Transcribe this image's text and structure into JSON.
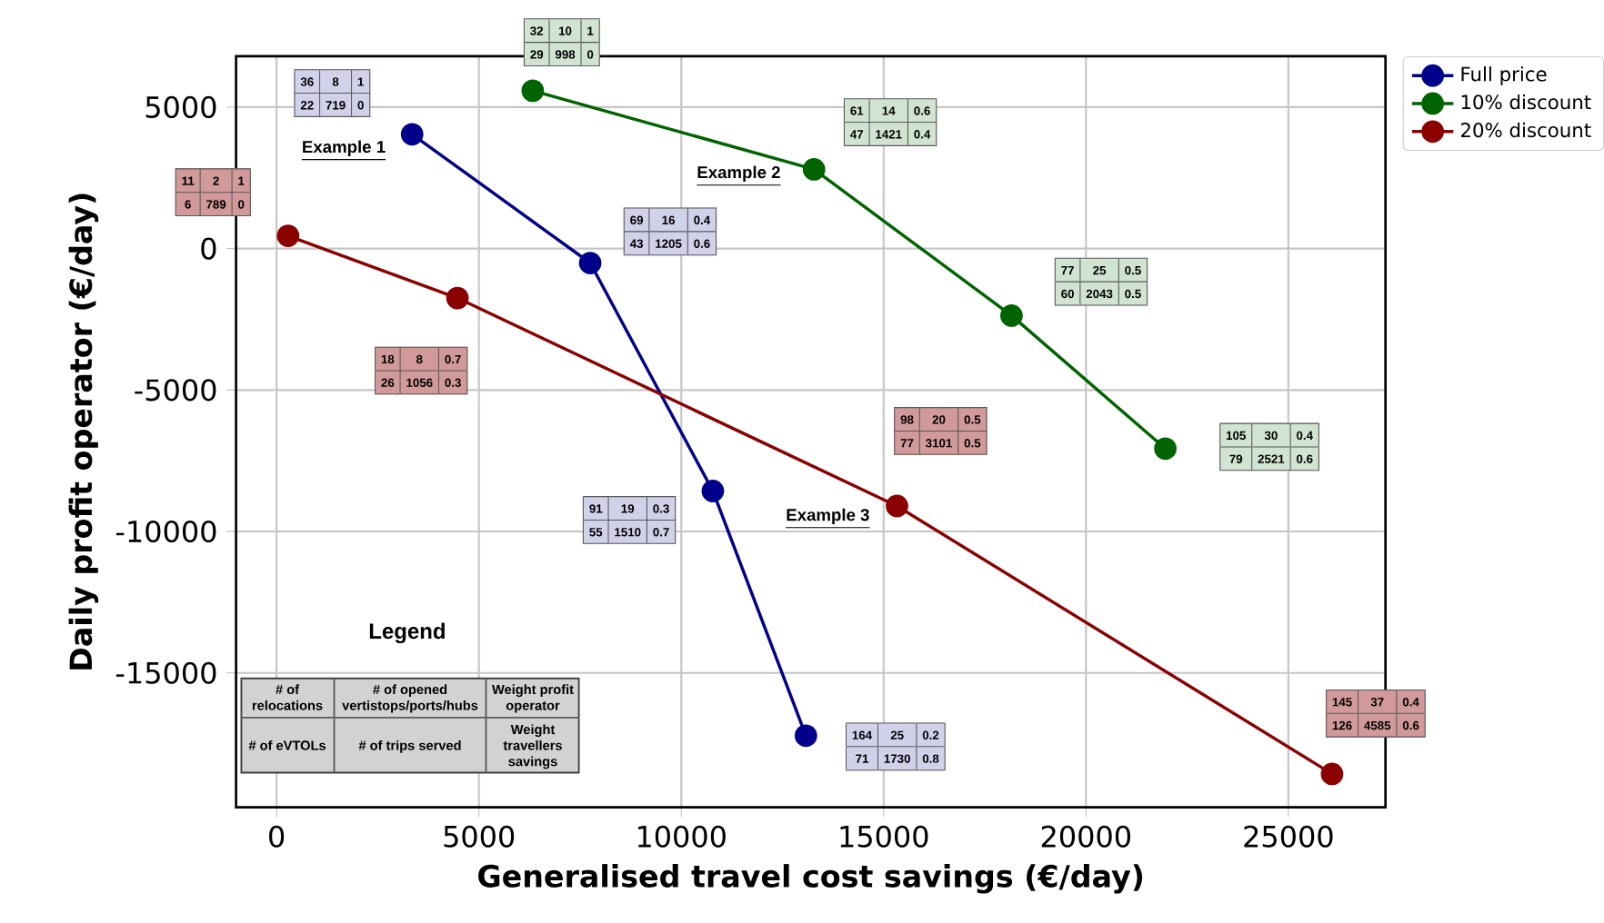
{
  "chart_data": {
    "type": "line",
    "xlabel": "Generalised travel cost savings (€/day)",
    "ylabel": "Daily profit operator (€/day)",
    "xlim": [
      -1000,
      27400
    ],
    "ylim": [
      -19750,
      6800
    ],
    "xticks": [
      0,
      5000,
      10000,
      15000,
      20000,
      25000
    ],
    "yticks": [
      -15000,
      -10000,
      -5000,
      0,
      5000
    ],
    "grid": true,
    "legend": "top right",
    "marker": "circle",
    "line_style": "solid",
    "series": [
      {
        "name": "Full price",
        "color": "#00008b",
        "x": [
          3350,
          7750,
          10780,
          13080
        ],
        "values": [
          4040,
          -510,
          -8570,
          -17220
        ]
      },
      {
        "name": "10% discount",
        "color": "#006400",
        "x": [
          6330,
          13280,
          18160,
          21960
        ],
        "values": [
          5580,
          2800,
          -2370,
          -7070
        ]
      },
      {
        "name": "20% discount",
        "color": "#8b0000",
        "x": [
          285,
          4470,
          15330,
          26080
        ],
        "values": [
          450,
          -1750,
          -9100,
          -18570
        ]
      }
    ],
    "annotations": [
      "36",
      "8",
      "1",
      "22",
      "719",
      "0",
      "69",
      "16",
      "0.4",
      "43",
      "1205",
      "0.6",
      "91",
      "19",
      "0.3",
      "55",
      "1510",
      "0.7",
      "164",
      "25",
      "0.2",
      "71",
      "1730",
      "0.8",
      "32",
      "10",
      "1",
      "29",
      "998",
      "0",
      "61",
      "14",
      "0.6",
      "47",
      "1421",
      "0.4",
      "77",
      "25",
      "0.5",
      "60",
      "2043",
      "0.5",
      "105",
      "30",
      "0.4",
      "79",
      "2521",
      "0.6",
      "11",
      "2",
      "1",
      "6",
      "789",
      "0",
      "18",
      "8",
      "0.7",
      "26",
      "1056",
      "0.3",
      "98",
      "20",
      "0.5",
      "77",
      "3101",
      "0.5",
      "145",
      "37",
      "0.4",
      "126",
      "4585",
      "0.6",
      "Example 1",
      "Example 2",
      "Example 3",
      "Legend",
      "# of relocations",
      "# of opened vertistops/ports/hubs",
      "Weight profit operator",
      "# of eVTOLs",
      "# of trips served",
      "Weight travellers savings"
    ]
  }
}
